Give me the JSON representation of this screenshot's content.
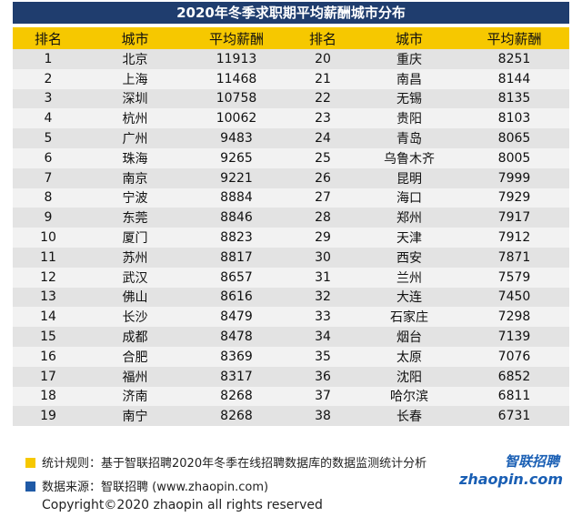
{
  "title": "2020年冬季求职期平均薪酬城市分布",
  "table": {
    "header": [
      "排名",
      "城市",
      "平均薪酬",
      "排名",
      "城市",
      "平均薪酬"
    ],
    "rows": [
      [
        1,
        "北京",
        11913,
        20,
        "重庆",
        8251
      ],
      [
        2,
        "上海",
        11468,
        21,
        "南昌",
        8144
      ],
      [
        3,
        "深圳",
        10758,
        22,
        "无锡",
        8135
      ],
      [
        4,
        "杭州",
        10062,
        23,
        "贵阳",
        8103
      ],
      [
        5,
        "广州",
        9483,
        24,
        "青岛",
        8065
      ],
      [
        6,
        "珠海",
        9265,
        25,
        "乌鲁木齐",
        8005
      ],
      [
        7,
        "南京",
        9221,
        26,
        "昆明",
        7999
      ],
      [
        8,
        "宁波",
        8884,
        27,
        "海口",
        7929
      ],
      [
        9,
        "东莞",
        8846,
        28,
        "郑州",
        7917
      ],
      [
        10,
        "厦门",
        8823,
        29,
        "天津",
        7912
      ],
      [
        11,
        "苏州",
        8817,
        30,
        "西安",
        7871
      ],
      [
        12,
        "武汉",
        8657,
        31,
        "兰州",
        7579
      ],
      [
        13,
        "佛山",
        8616,
        32,
        "大连",
        7450
      ],
      [
        14,
        "长沙",
        8479,
        33,
        "石家庄",
        7298
      ],
      [
        15,
        "成都",
        8478,
        34,
        "烟台",
        7139
      ],
      [
        16,
        "合肥",
        8369,
        35,
        "太原",
        7076
      ],
      [
        17,
        "福州",
        8317,
        36,
        "沈阳",
        6852
      ],
      [
        18,
        "济南",
        8268,
        37,
        "哈尔滨",
        6811
      ],
      [
        19,
        "南宁",
        8268,
        38,
        "长春",
        6731
      ]
    ]
  },
  "notes": [
    "统计规则：基于智联招聘2020年冬季在线招聘数据库的数据监测统计分析",
    "数据来源：智联招聘 (www.zhaopin.com)"
  ],
  "logo": {
    "name": "智联招聘",
    "site": "zhaopin.com"
  },
  "copyright": "Copyright©2020 zhaopin all rights reserved"
}
